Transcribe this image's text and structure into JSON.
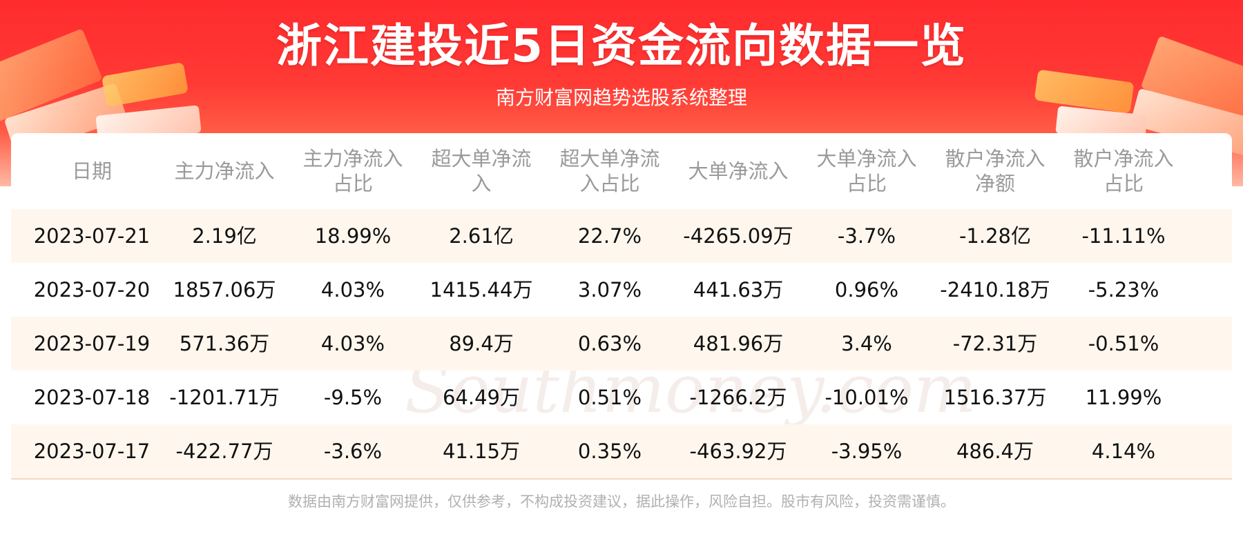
{
  "header": {
    "title": "浙江建投近5日资金流向数据一览",
    "subtitle": "南方财富网趋势选股系统整理"
  },
  "watermark": {
    "cn": "南方财富网",
    "en": "Southmoney.com"
  },
  "table": {
    "columns": [
      [
        "日期"
      ],
      [
        "主力净流入"
      ],
      [
        "主力净流入",
        "占比"
      ],
      [
        "超大单净流",
        "入"
      ],
      [
        "超大单净流",
        "入占比"
      ],
      [
        "大单净流入"
      ],
      [
        "大单净流入",
        "占比"
      ],
      [
        "散户净流入",
        "净额"
      ],
      [
        "散户净流入",
        "占比"
      ]
    ],
    "rows": [
      [
        "2023-07-21",
        "2.19亿",
        "18.99%",
        "2.61亿",
        "22.7%",
        "-4265.09万",
        "-3.7%",
        "-1.28亿",
        "-11.11%"
      ],
      [
        "2023-07-20",
        "1857.06万",
        "4.03%",
        "1415.44万",
        "3.07%",
        "441.63万",
        "0.96%",
        "-2410.18万",
        "-5.23%"
      ],
      [
        "2023-07-19",
        "571.36万",
        "4.03%",
        "89.4万",
        "0.63%",
        "481.96万",
        "3.4%",
        "-72.31万",
        "-0.51%"
      ],
      [
        "2023-07-18",
        "-1201.71万",
        "-9.5%",
        "64.49万",
        "0.51%",
        "-1266.2万",
        "-10.01%",
        "1516.37万",
        "11.99%"
      ],
      [
        "2023-07-17",
        "-422.77万",
        "-3.6%",
        "41.15万",
        "0.35%",
        "-463.92万",
        "-3.95%",
        "486.4万",
        "4.14%"
      ]
    ]
  },
  "footer": {
    "disclaimer": "数据由南方财富网提供，仅供参考，不构成投资建议，据此操作，风险自担。股市有风险，投资需谨慎。"
  },
  "colors": {
    "banner_red": "#ff2b2e",
    "header_text": "#9a9a9a",
    "alt_row": "#fff7ee"
  }
}
